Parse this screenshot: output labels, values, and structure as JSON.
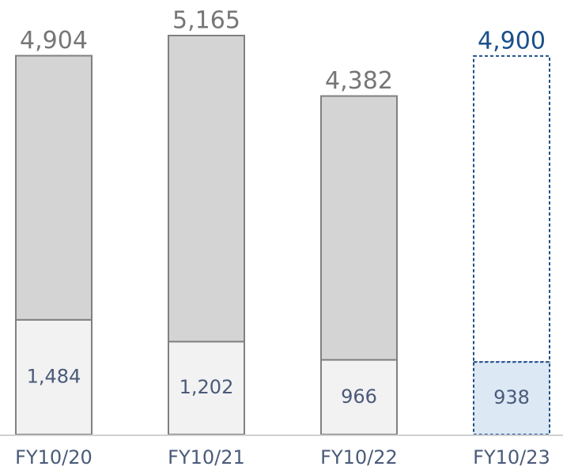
{
  "chart_data": {
    "type": "stacked_bar",
    "categories": [
      "FY10/20",
      "FY10/21",
      "FY10/22",
      "FY10/23"
    ],
    "totals": [
      4904,
      5165,
      4382,
      4900
    ],
    "total_labels": [
      "4,904",
      "5,165",
      "4,382",
      "4,900"
    ],
    "series": [
      {
        "values": [
          1484,
          1202,
          966,
          938
        ],
        "value_labels": [
          "1,484",
          "1,202",
          "966",
          "938"
        ]
      }
    ],
    "top_colors": [
      "#d4d4d4",
      "#d4d4d4",
      "#d4d4d4",
      "#ffffff"
    ],
    "bottom_colors": [
      "#f2f2f2",
      "#f2f2f2",
      "#f2f2f2",
      "#dde8f5"
    ],
    "edge_colors": [
      "#808080",
      "#808080",
      "#808080",
      "#1f4e8c"
    ],
    "label_colors": [
      "#767676",
      "#767676",
      "#767676",
      "#1a4f8a"
    ],
    "inner_label_color": "#4a5a7a",
    "dashed": [
      false,
      false,
      false,
      true
    ]
  }
}
